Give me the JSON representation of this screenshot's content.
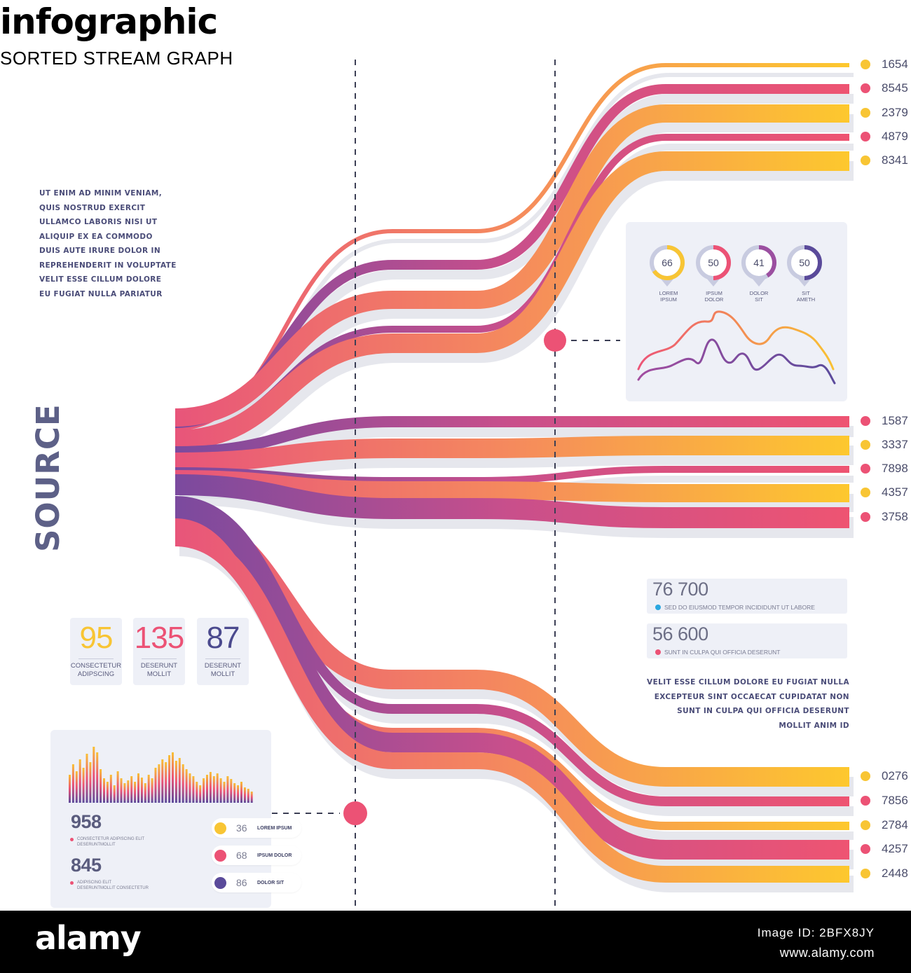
{
  "header": {
    "title": "infographic",
    "subtitle": "SORTED STREAM GRAPH"
  },
  "intro_lines": [
    "UT ENIM AD MINIM VENIAM,",
    "QUIS NOSTRUD EXERCIT",
    "ULLAMCO LABORIS NISI UT",
    "ALIQUIP EX EA COMMODO",
    "DUIS AUTE IRURE DOLOR IN",
    "REPREHENDERIT IN VOLUPTATE",
    "VELIT ESSE CILLUM DOLORE",
    "EU FUGIAT NULLA PARIATUR"
  ],
  "source_label": "SOURCE",
  "outputs": {
    "group_top": [
      {
        "value": "1654",
        "color": "#f8c534"
      },
      {
        "value": "8545",
        "color": "#ec5275"
      },
      {
        "value": "2379",
        "color": "#f8c534"
      },
      {
        "value": "4879",
        "color": "#ec5275"
      },
      {
        "value": "8341",
        "color": "#f8c534"
      }
    ],
    "group_middle": [
      {
        "value": "1587",
        "color": "#ec5275"
      },
      {
        "value": "3337",
        "color": "#f8c534"
      },
      {
        "value": "7898",
        "color": "#ec5275"
      },
      {
        "value": "4357",
        "color": "#f8c534"
      },
      {
        "value": "3758",
        "color": "#ec5275"
      }
    ],
    "group_bottom": [
      {
        "value": "0276",
        "color": "#f8c534"
      },
      {
        "value": "7856",
        "color": "#ec5275"
      },
      {
        "value": "2784",
        "color": "#f8c534"
      },
      {
        "value": "4257",
        "color": "#ec5275"
      },
      {
        "value": "2448",
        "color": "#f8c534"
      }
    ]
  },
  "gauges": [
    {
      "value": "66",
      "fraction": 0.66,
      "label_1": "LOREM",
      "label_2": "IPSUM",
      "color": "#f8c534"
    },
    {
      "value": "50",
      "fraction": 0.5,
      "label_1": "IPSUM",
      "label_2": "DOLOR",
      "color": "#ec5275"
    },
    {
      "value": "41",
      "fraction": 0.41,
      "label_1": "DOLOR",
      "label_2": "SIT",
      "color": "#9b4fa0"
    },
    {
      "value": "50",
      "fraction": 0.5,
      "label_1": "SIT",
      "label_2": "AMETH",
      "color": "#5a4a9a"
    }
  ],
  "stats": [
    {
      "value": "95",
      "label_1": "CONSECTETUR",
      "label_2": "ADIPSCING",
      "color": "#f8c534"
    },
    {
      "value": "135",
      "label_1": "DESERUNT",
      "label_2": "MOLLIT",
      "color": "#ec5275"
    },
    {
      "value": "87",
      "label_1": "DESERUNT",
      "label_2": "MOLLIT",
      "color": "#4b4a8e"
    }
  ],
  "metrics": [
    {
      "value": "76 700",
      "caption": "SED DO EIUSMOD TEMPOR INCIDIDUNT UT LABORE",
      "dot": "#2aa7e0"
    },
    {
      "value": "56 600",
      "caption": "SUNT IN CULPA QUI OFFICIA DESERUNT",
      "dot": "#ec5275"
    }
  ],
  "right_text_lines": [
    "VELIT ESSE CILLUM DOLORE EU FUGIAT NULLA",
    "EXCEPTEUR SINT OCCAECAT CUPIDATAT NON",
    "SUNT IN CULPA QUI OFFICIA DESERUNT",
    "MOLLIT ANIM ID"
  ],
  "left_panel": {
    "num_1": "958",
    "cap_1a": "CONSECTETUR ADIPISCING ELIT",
    "cap_1b": "DESERUNTMOLLIT",
    "num_2": "845",
    "cap_2a": "ADIPISCING ELIT",
    "cap_2b": "DESERUNTMOLLIT CONSECTETUR",
    "pills": [
      {
        "value": "36",
        "label": "LOREM IPSUM",
        "color": "#f8c534"
      },
      {
        "value": "68",
        "label": "IPSUM DOLOR",
        "color": "#ec5275"
      },
      {
        "value": "86",
        "label": "DOLOR SIT",
        "color": "#5a4a9a"
      }
    ]
  },
  "colors": {
    "yellow": "#f8c534",
    "pink": "#ec5275",
    "purple": "#7b4a9e",
    "ink": "#3c3f63"
  },
  "footer": {
    "brand": "alamy",
    "image_id": "Image ID: 2BFX8JY",
    "site": "www.alamy.com"
  }
}
